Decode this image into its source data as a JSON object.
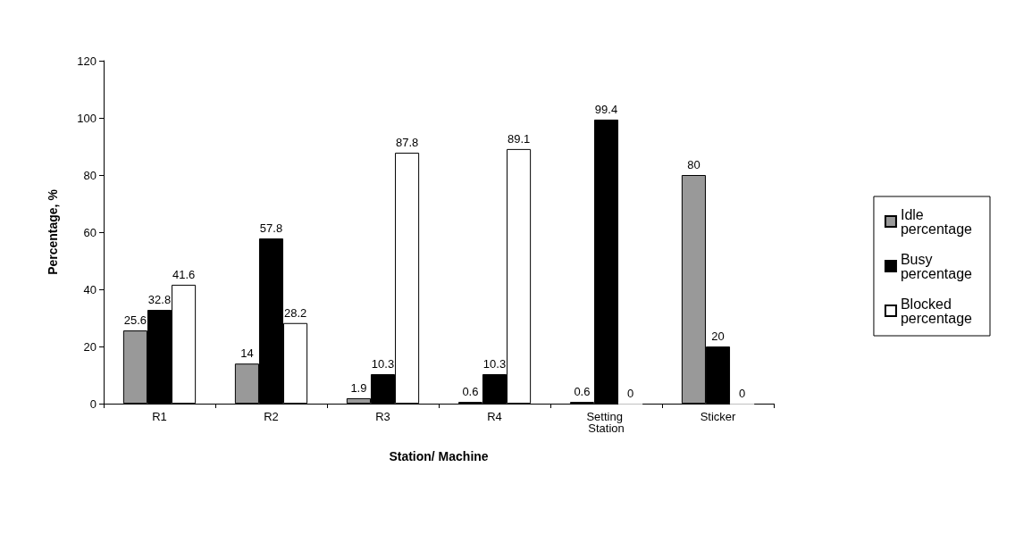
{
  "chart_data": {
    "type": "bar",
    "xlabel": "Station/ Machine",
    "ylabel": "Percentage, %",
    "categories": [
      "R1",
      "R2",
      "R3",
      "R4",
      "Setting Station",
      "Sticker"
    ],
    "series": [
      {
        "name": "Idle percentage",
        "color": "#999999",
        "values": [
          25.6,
          14,
          1.9,
          0.6,
          0.6,
          80
        ]
      },
      {
        "name": "Busy percentage",
        "color": "#000000",
        "values": [
          32.8,
          57.8,
          10.3,
          10.3,
          99.4,
          20
        ]
      },
      {
        "name": "Blocked percentage",
        "color": "#ffffff",
        "values": [
          41.6,
          28.2,
          87.8,
          89.1,
          0,
          0
        ]
      }
    ],
    "ylim": [
      0,
      120
    ],
    "yticks": [
      0,
      20,
      40,
      60,
      80,
      100,
      120
    ],
    "grid": false,
    "legend": "right",
    "data_labels": true
  }
}
